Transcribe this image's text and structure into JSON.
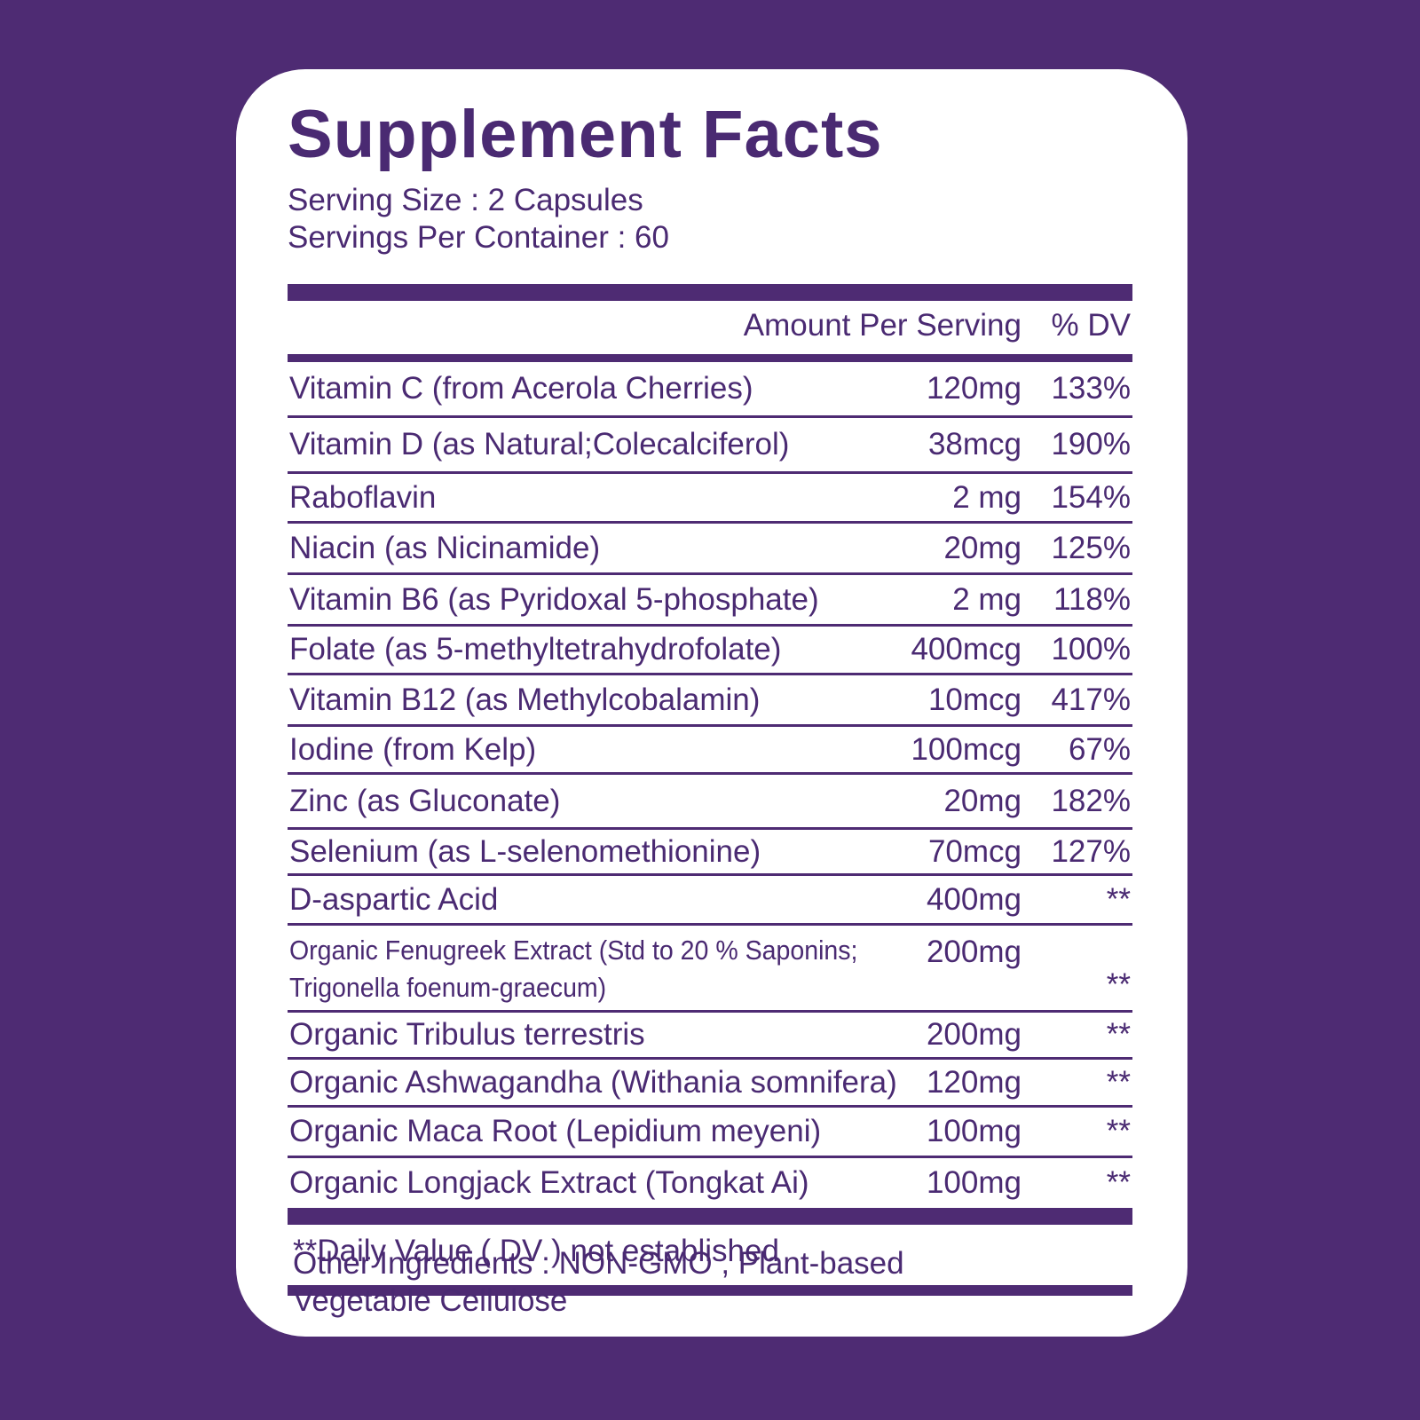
{
  "title": "Supplement Facts",
  "serving_size": "Serving Size : 2 Capsules",
  "servings_per_container": "Servings Per Container : 60",
  "table": {
    "header": [
      "Amount Per Serving",
      "% DV"
    ],
    "rows": [
      [
        [
          "Vitamin C (from Acerola Cherries)"
        ],
        "120mg",
        "133%"
      ],
      [
        [
          "Vitamin D (as Natural;Colecalciferol)"
        ],
        "38mcg",
        "190%"
      ],
      [
        [
          "Raboflavin"
        ],
        "2 mg",
        "154%"
      ],
      [
        [
          "Niacin (as Nicinamide)"
        ],
        "20mg",
        "125%"
      ],
      [
        [
          "Vitamin B6 (as Pyridoxal 5-phosphate)"
        ],
        "2 mg",
        "118%"
      ],
      [
        [
          "Folate (as 5-methyltetrahydrofolate)"
        ],
        "400mcg",
        "100%"
      ],
      [
        [
          "Vitamin B12 (as Methylcobalamin)"
        ],
        "10mcg",
        "417%"
      ],
      [
        [
          "Iodine (from Kelp)"
        ],
        "100mcg",
        "67%"
      ],
      [
        [
          "Zinc (as Gluconate)"
        ],
        "20mg",
        "182%"
      ],
      [
        [
          "Selenium (as L-selenomethionine)"
        ],
        "70mcg",
        "127%"
      ],
      [
        [
          "D-aspartic Acid"
        ],
        "400mg",
        "**"
      ],
      [
        [
          "Organic Fenugreek Extract (Std to 20 % Saponins;",
          "Trigonella foenum-graecum)"
        ],
        "200mg",
        "**"
      ],
      [
        [
          "Organic Tribulus terrestris"
        ],
        "200mg",
        "**"
      ],
      [
        [
          "Organic Ashwagandha (Withania somnifera)"
        ],
        "120mg",
        "**"
      ],
      [
        [
          "Organic Maca Root (Lepidium meyeni)"
        ],
        "100mg",
        "**"
      ],
      [
        [
          "Organic Longjack Extract (Tongkat Ai)"
        ],
        "100mg",
        "**"
      ]
    ]
  },
  "footnote": "**Daily Value ( DV ) not established",
  "other_ingredients": [
    "Other Ingredients : NON-GMO , Plant-based",
    "Vegetable Cellulose"
  ]
}
